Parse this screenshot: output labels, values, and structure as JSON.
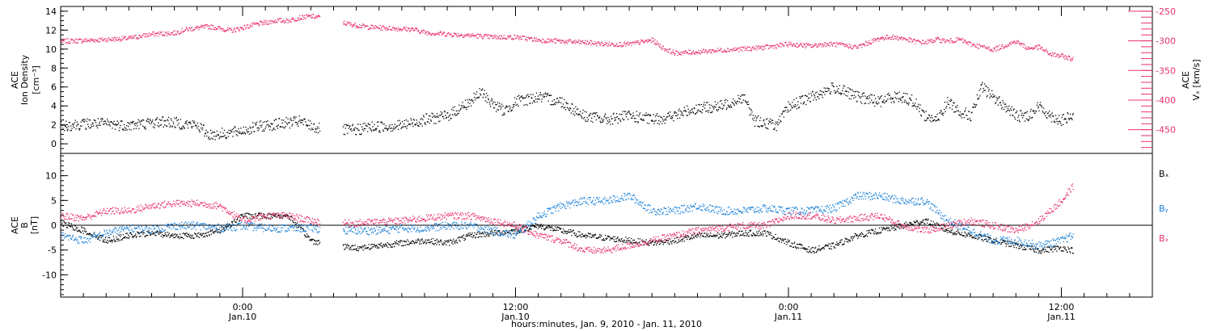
{
  "chart_data": [
    {
      "type": "scatter",
      "panel": "plasma",
      "ylabel_left": [
        "ACE",
        "Ion Density",
        "[cm⁻³]"
      ],
      "ylabel_right": [
        "ACE",
        "Vₓ [km/s]"
      ],
      "y_left_range": [
        -0.5,
        14.5
      ],
      "y_left_ticks": [
        0,
        2,
        4,
        6,
        8,
        10,
        12,
        14
      ],
      "y_right_range": [
        -490,
        -242
      ],
      "y_right_ticks": [
        -250,
        -300,
        -350,
        -400,
        -450
      ],
      "gap_hours": [
        22.8,
        24.8
      ],
      "series": [
        {
          "color": "#000000",
          "axis": "left",
          "x_hours": [
            0,
            3,
            6,
            9,
            12,
            13,
            15,
            18,
            21,
            23,
            26,
            27,
            30,
            32,
            34,
            36,
            37,
            38,
            39,
            40,
            42,
            44,
            46,
            48,
            50,
            52,
            54,
            55,
            56,
            58,
            60,
            61,
            63,
            64,
            66,
            68,
            70,
            72,
            73,
            74,
            75,
            76,
            77,
            78,
            79,
            80,
            81,
            82,
            84,
            85,
            86,
            87,
            88,
            89
          ],
          "y": [
            2.0,
            2.2,
            2.0,
            2.4,
            2.0,
            1.0,
            1.2,
            2.0,
            2.4,
            1.5,
            1.5,
            1.8,
            2.0,
            2.6,
            3.0,
            4.5,
            5.5,
            4.2,
            3.5,
            4.5,
            5.0,
            4.5,
            3.0,
            2.6,
            3.0,
            2.6,
            3.0,
            3.5,
            3.8,
            4.0,
            5.0,
            2.5,
            2.0,
            4.0,
            5.0,
            6.0,
            5.0,
            4.5,
            5.0,
            5.0,
            4.5,
            3.0,
            2.5,
            4.5,
            3.5,
            3.0,
            6.0,
            5.0,
            3.0,
            3.0,
            4.0,
            3.0,
            2.5,
            3.0
          ]
        },
        {
          "color": "#e8336b",
          "axis": "right",
          "x_hours": [
            0,
            3,
            6,
            8,
            10,
            11,
            13,
            15,
            17,
            19,
            20,
            21,
            22,
            24,
            25,
            27,
            29,
            31,
            32,
            34,
            36,
            38,
            40,
            42,
            44,
            46,
            48,
            50,
            52,
            53,
            54,
            56,
            58,
            60,
            62,
            64,
            66,
            67,
            68,
            70,
            72,
            73,
            74,
            75,
            76,
            77,
            78,
            79,
            80,
            82,
            84,
            85,
            86,
            87,
            88,
            89
          ],
          "y": [
            -300,
            -298,
            -295,
            -288,
            -286,
            -280,
            -275,
            -282,
            -272,
            -265,
            -265,
            -260,
            -258,
            -262,
            -270,
            -276,
            -278,
            -280,
            -285,
            -288,
            -290,
            -293,
            -293,
            -298,
            -300,
            -302,
            -305,
            -305,
            -298,
            -312,
            -320,
            -318,
            -315,
            -313,
            -310,
            -305,
            -308,
            -305,
            -305,
            -310,
            -295,
            -293,
            -295,
            -300,
            -302,
            -297,
            -300,
            -297,
            -305,
            -314,
            -300,
            -312,
            -310,
            -322,
            -325,
            -330
          ]
        }
      ]
    },
    {
      "type": "scatter",
      "panel": "magnetic-field",
      "ylabel_left": [
        "ACE",
        "B",
        "[nT]"
      ],
      "y_range": [
        -14.5,
        14.5
      ],
      "y_ticks": [
        10,
        5,
        0,
        -5,
        -10
      ],
      "zero_line": true,
      "legend_placement": "right",
      "gap_hours": [
        22.8,
        24.8
      ],
      "series": [
        {
          "name": "Bₓ",
          "color": "#000000",
          "x_hours": [
            0,
            2,
            4,
            6,
            8,
            10,
            12,
            14,
            16,
            18,
            20,
            22,
            24,
            26,
            28,
            30,
            32,
            34,
            36,
            38,
            40,
            42,
            44,
            46,
            48,
            50,
            52,
            54,
            56,
            58,
            60,
            62,
            64,
            66,
            68,
            70,
            72,
            74,
            76,
            78,
            80,
            82,
            84,
            86,
            88,
            89
          ],
          "y": [
            0.5,
            -1,
            -3,
            -2,
            -1.5,
            -2,
            -2,
            -1,
            2,
            2,
            2,
            -3,
            -4,
            -4.5,
            -4,
            -3.5,
            -3,
            -3.5,
            -2,
            -1.5,
            -1,
            0,
            -1,
            -2,
            -2.5,
            -3,
            -3.5,
            -3,
            -2,
            -2,
            -1.5,
            -1.5,
            -3.5,
            -5,
            -4,
            -2,
            -1,
            0,
            1,
            -1,
            -2,
            -3,
            -4,
            -5,
            -4.5,
            -5
          ]
        },
        {
          "name": "Bᵧ",
          "color": "#1a80d8",
          "x_hours": [
            0,
            2,
            4,
            6,
            8,
            10,
            12,
            14,
            16,
            18,
            20,
            22,
            24,
            26,
            28,
            30,
            32,
            34,
            36,
            38,
            40,
            42,
            44,
            46,
            48,
            50,
            52,
            54,
            56,
            58,
            60,
            62,
            64,
            66,
            68,
            70,
            72,
            74,
            76,
            78,
            80,
            82,
            84,
            86,
            88,
            89
          ],
          "y": [
            -2,
            -3,
            -1.5,
            -0.5,
            -0.8,
            0,
            0,
            -0.5,
            0,
            -0.5,
            -0.5,
            -0.5,
            -1,
            -1,
            -1,
            -0.5,
            -0.5,
            0,
            0,
            -1,
            -2,
            2,
            4,
            5,
            5,
            6,
            3,
            3,
            4,
            3,
            3,
            3.5,
            3,
            3,
            3.5,
            6,
            6,
            5,
            5,
            1,
            -1,
            -3,
            -3,
            -4,
            -3,
            -2
          ]
        },
        {
          "name": "Bₓ",
          "color": "#e8336b",
          "x_hours": [
            0,
            2,
            4,
            6,
            8,
            10,
            12,
            14,
            16,
            18,
            20,
            22,
            24,
            26,
            28,
            30,
            32,
            34,
            36,
            38,
            40,
            42,
            44,
            46,
            48,
            50,
            52,
            54,
            56,
            58,
            60,
            62,
            64,
            66,
            68,
            70,
            72,
            74,
            76,
            78,
            80,
            82,
            84,
            86,
            88,
            89
          ],
          "y": [
            2,
            1.5,
            3,
            3,
            4,
            4.5,
            4.5,
            4,
            1,
            2,
            2,
            1,
            0.5,
            0.5,
            0.8,
            1,
            1.5,
            2,
            2,
            1,
            0,
            -2,
            -3,
            -5,
            -5,
            -4,
            -3,
            -2,
            -1,
            -0.5,
            0,
            0,
            2,
            2,
            1,
            1.5,
            2,
            0,
            -1,
            0,
            1,
            0,
            -1,
            1,
            5,
            8
          ]
        }
      ]
    }
  ],
  "x_axis": {
    "range_hours": [
      0,
      96
    ],
    "ticks": [
      {
        "hour": 16,
        "line1": "0:00",
        "line2": "Jan.10"
      },
      {
        "hour": 40,
        "line1": "12:00",
        "line2": "Jan.10"
      },
      {
        "hour": 64,
        "line1": "0:00",
        "line2": "Jan.11"
      },
      {
        "hour": 88,
        "line1": "12:00",
        "line2": "Jan.11"
      }
    ],
    "title": "hours:minutes, Jan. 9, 2010 - Jan. 11, 2010"
  },
  "legend": {
    "bx": "Bₓ",
    "by": "Bᵧ",
    "bz": "Bₓ"
  },
  "colors": {
    "black": "#000000",
    "pink": "#e8336b",
    "blue": "#1a80d8"
  }
}
